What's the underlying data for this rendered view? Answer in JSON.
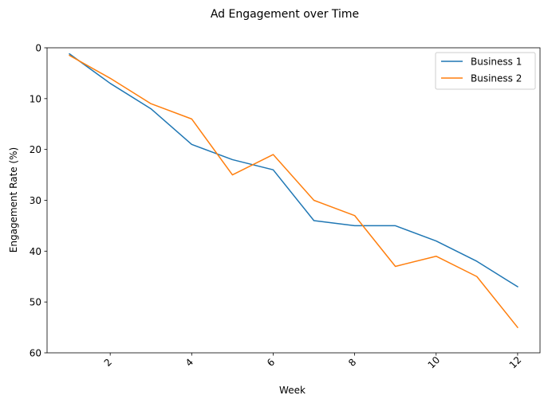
{
  "chart_data": {
    "type": "line",
    "title": "Ad Engagement over Time",
    "xlabel": "Week",
    "ylabel": "Engagement Rate (%)",
    "x": [
      1,
      2,
      3,
      4,
      5,
      6,
      7,
      8,
      9,
      10,
      11,
      12
    ],
    "xlim": [
      0.45,
      12.55
    ],
    "ylim": [
      60,
      0
    ],
    "y_inverted": true,
    "x_ticks": [
      2,
      4,
      6,
      8,
      10,
      12
    ],
    "y_ticks": [
      0,
      10,
      20,
      30,
      40,
      50,
      60
    ],
    "x_tick_rotation": "45 degrees",
    "grid": false,
    "legend_position": "upper right",
    "series": [
      {
        "name": "Business 1",
        "color": "#1f77b4",
        "values": [
          1.2,
          7,
          12,
          19,
          22,
          24,
          34,
          35,
          35,
          38,
          42,
          47
        ]
      },
      {
        "name": "Business 2",
        "color": "#ff7f0e",
        "values": [
          1.5,
          6,
          11,
          14,
          25,
          21,
          30,
          33,
          43,
          41,
          45,
          55
        ]
      }
    ]
  }
}
